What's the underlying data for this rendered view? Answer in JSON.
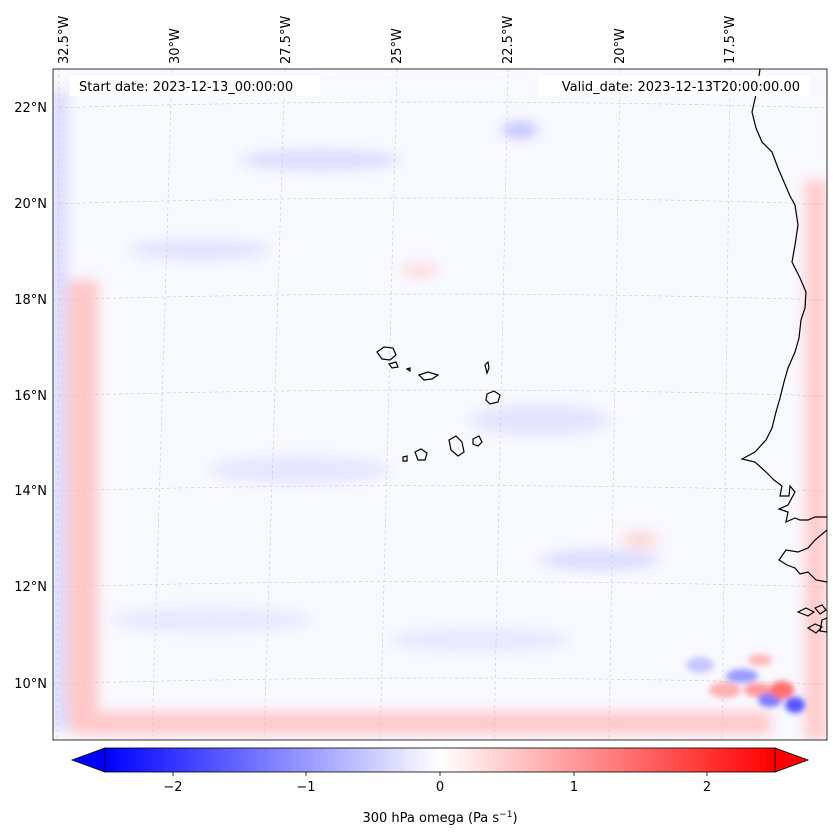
{
  "header": {
    "start_date": "Start date: 2023-12-13_00:00:00",
    "valid_date": "Valid_date: 2023-12-13T20:00:00.00"
  },
  "axes": {
    "lon_labels": [
      "32.5°W",
      "30°W",
      "27.5°W",
      "25°W",
      "22.5°W",
      "20°W",
      "17.5°W"
    ],
    "lat_labels": [
      "22°N",
      "20°N",
      "18°N",
      "16°N",
      "14°N",
      "12°N",
      "10°N"
    ]
  },
  "colorbar": {
    "ticks": [
      "−2",
      "−1",
      "0",
      "1",
      "2"
    ],
    "label": "300 hPa omega (Pa s",
    "label_sup": "−1",
    "label_end": ")",
    "vmin": -2.7,
    "vmax": 2.7,
    "low_color": "#0000ff",
    "mid_color": "#ffffff",
    "high_color": "#ff0000"
  }
}
